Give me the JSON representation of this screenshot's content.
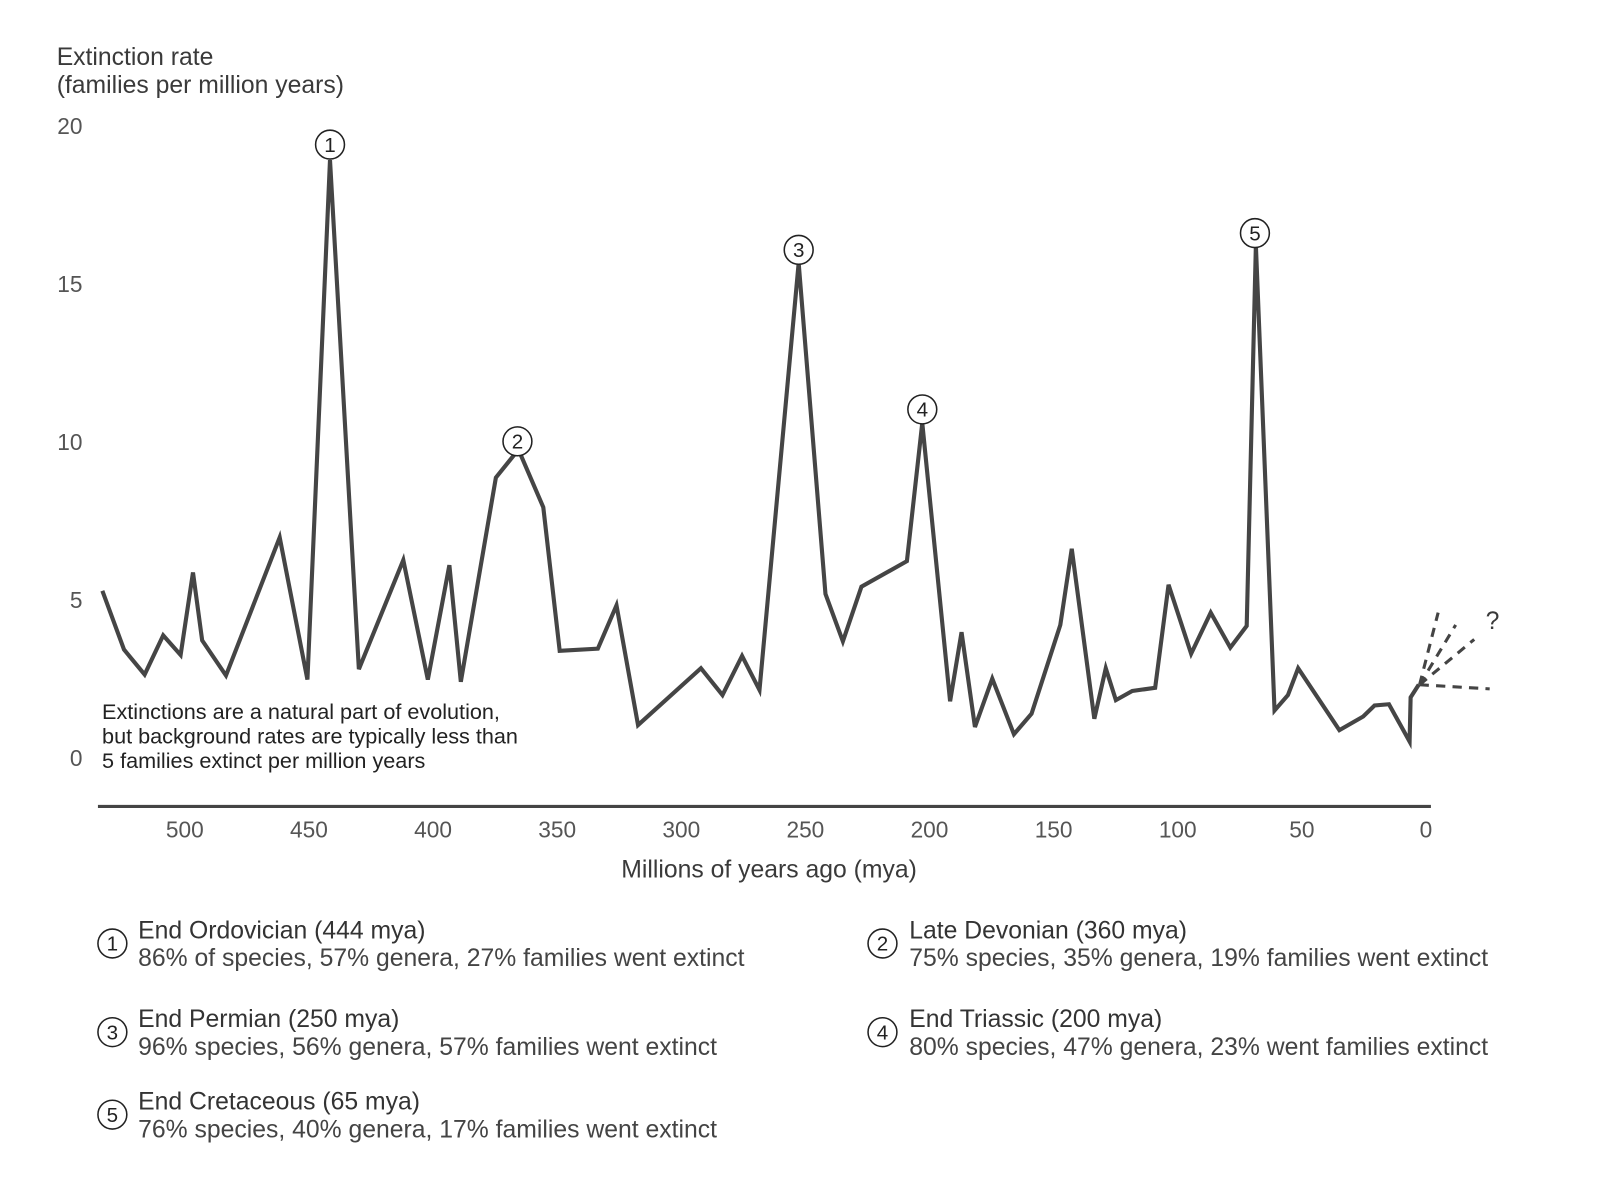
{
  "chart_data": {
    "type": "line",
    "y_axis_title": "Extinction rate",
    "y_axis_subtitle": "(families per million years)",
    "x_axis_title": "Millions of years ago (mya)",
    "color": "#454545",
    "x": [
      533.2,
      524.5,
      516.2,
      508.7,
      501.7,
      496.7,
      493,
      483.4,
      461.8,
      450.6,
      441.5,
      429.9,
      412,
      402.1,
      393.4,
      388.8,
      374.7,
      365.6,
      355.6,
      349,
      333.6,
      326.1,
      317.4,
      292.1,
      283.4,
      275.5,
      268.5,
      252.7,
      241.9,
      234.9,
      227.4,
      209.1,
      202.9,
      191.7,
      187.1,
      181.7,
      174.7,
      166,
      158.9,
      147.3,
      142.7,
      133.6,
      129,
      124.9,
      118.3,
      109.1,
      103.7,
      94.6,
      86.7,
      78.8,
      72.2,
      68.5,
      61,
      55.6,
      51.5,
      34.9,
      25.3,
      20.7,
      14.9,
      6.6,
      6.2,
      2.9
    ],
    "values": [
      5.29,
      3.43,
      2.64,
      3.88,
      3.26,
      5.87,
      3.72,
      2.61,
      6.98,
      2.48,
      18.92,
      2.81,
      6.26,
      2.48,
      6.1,
      2.41,
      8.87,
      9.76,
      7.93,
      3.39,
      3.46,
      4.83,
      1.04,
      2.84,
      1.99,
      3.23,
      2.15,
      15.66,
      5.19,
      3.69,
      5.42,
      6.23,
      10.6,
      1.79,
      3.98,
      0.98,
      2.51,
      0.75,
      1.4,
      4.21,
      6.62,
      1.24,
      2.84,
      1.83,
      2.12,
      2.22,
      5.48,
      3.3,
      4.6,
      3.49,
      4.18,
      16.22,
      1.5,
      1.99,
      2.84,
      0.88,
      1.31,
      1.66,
      1.7,
      0.52,
      1.92,
      2.32
    ],
    "xlim": [
      535,
      -2
    ],
    "xticks": [
      500,
      450,
      400,
      350,
      300,
      250,
      200,
      150,
      100,
      50,
      0
    ],
    "ylim": [
      0,
      20
    ],
    "yticks": [
      0,
      5,
      10,
      15,
      20
    ],
    "grid": false,
    "annotations": [
      {
        "text": "1",
        "x": 441.5,
        "y": 19.41
      },
      {
        "text": "2",
        "x": 366,
        "y": 10.02
      },
      {
        "text": "3",
        "x": 252.7,
        "y": 16.08
      },
      {
        "text": "4",
        "x": 202.9,
        "y": 11.03
      },
      {
        "text": "5",
        "x": 68.9,
        "y": 16.61
      }
    ],
    "projection_label": "?",
    "note": [
      "Extinctions are a natural part of evolution,",
      "but background rates are typically less than",
      "5 families extinct per million years"
    ],
    "legend": [
      {
        "number": "1",
        "title": "End Ordovician (444 mya)",
        "text": "86% of species, 57% genera, 27% families went extinct"
      },
      {
        "number": "2",
        "title": "Late Devonian (360 mya)",
        "text": "75% species, 35% genera, 19% families went extinct"
      },
      {
        "number": "3",
        "title": "End Permian (250 mya)",
        "text": "96% species, 56% genera, 57% families went extinct"
      },
      {
        "number": "4",
        "title": "End Triassic (200 mya)",
        "text": "80% species, 47% genera, 23% went families extinct"
      },
      {
        "number": "5",
        "title": "End Cretaceous (65 mya)",
        "text": "76% species, 40% genera, 17% families went extinct"
      }
    ]
  }
}
